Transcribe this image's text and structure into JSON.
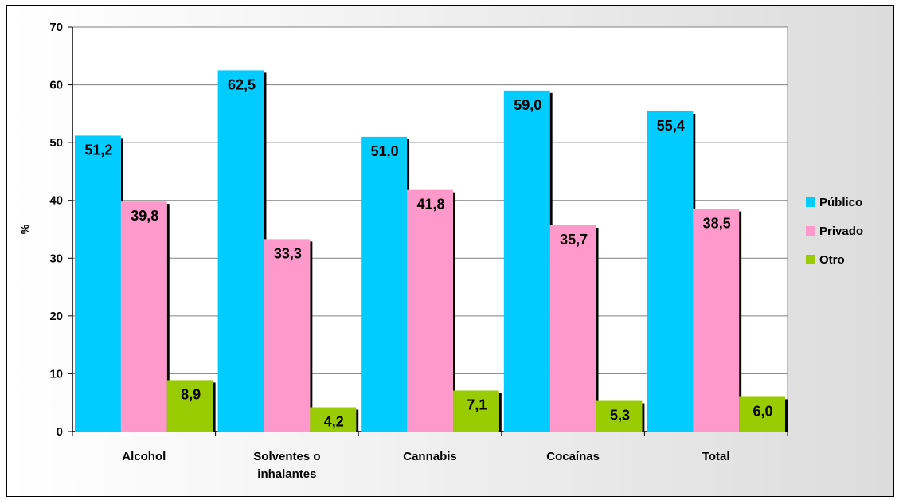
{
  "chart_data": {
    "type": "bar",
    "categories": [
      [
        "Alcohol"
      ],
      [
        "Solventes o",
        "inhalantes"
      ],
      [
        "Cannabis"
      ],
      [
        "Cocaínas"
      ],
      [
        "Total"
      ]
    ],
    "series": [
      {
        "name": "Público",
        "color": "#00CCFF",
        "values": [
          51.2,
          62.5,
          51.0,
          59.0,
          55.4
        ],
        "labels": [
          "51,2",
          "62,5",
          "51,0",
          "59,0",
          "55,4"
        ]
      },
      {
        "name": "Privado",
        "color": "#FF99CC",
        "values": [
          39.8,
          33.3,
          41.8,
          35.7,
          38.5
        ],
        "labels": [
          "39,8",
          "33,3",
          "41,8",
          "35,7",
          "38,5"
        ]
      },
      {
        "name": "Otro",
        "color": "#99CC00",
        "values": [
          8.9,
          4.2,
          7.1,
          5.3,
          6.0
        ],
        "labels": [
          "8,9",
          "4,2",
          "7,1",
          "5,3",
          "6,0"
        ]
      }
    ],
    "ylabel": "%",
    "ylim": [
      0,
      70
    ],
    "yticks": [
      0,
      10,
      20,
      30,
      40,
      50,
      60,
      70
    ],
    "grid": true,
    "legend_position": "right",
    "plot_background": "#ffffff",
    "grid_color": "#808080"
  }
}
